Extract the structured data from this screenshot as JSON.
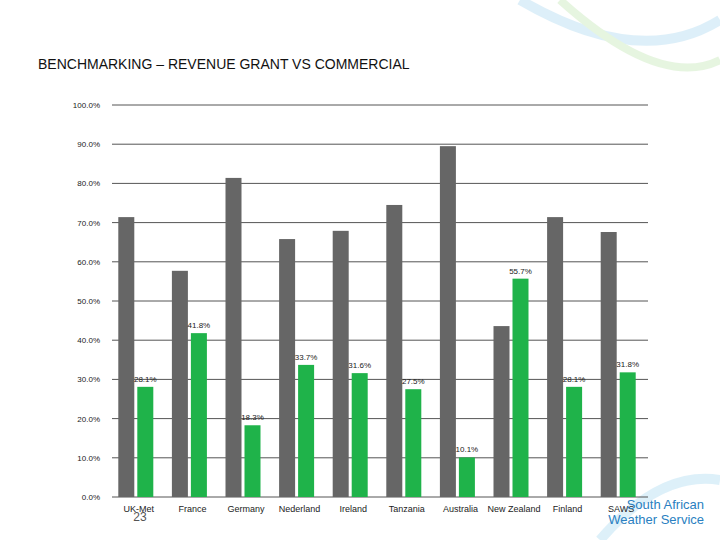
{
  "chart_data": {
    "type": "bar",
    "title": "BENCHMARKING – REVENUE GRANT VS COMMERCIAL",
    "categories": [
      "UK-Met",
      "France",
      "Germany",
      "Nederland",
      "Ireland",
      "Tanzania",
      "Australia",
      "New Zealand",
      "Finland",
      "SAWS"
    ],
    "series": [
      {
        "color": "#666666",
        "data_labels": false,
        "values": [
          71.4,
          57.7,
          81.4,
          65.8,
          67.9,
          74.5,
          89.5,
          43.6,
          71.4,
          67.6
        ]
      },
      {
        "color": "#1fb34a",
        "data_labels": true,
        "values": [
          28.1,
          41.8,
          18.3,
          33.7,
          31.6,
          27.5,
          10.1,
          55.7,
          28.1,
          31.8
        ],
        "value_labels": [
          "28.1%",
          "41.8%",
          "18.3%",
          "33.7%",
          "31.6%",
          "27.5%",
          "10.1%",
          "55.7%",
          "28.1%",
          "31.8%"
        ]
      }
    ],
    "ylim": [
      0,
      100
    ],
    "yticks": [
      {
        "value": 0,
        "label": "0.0%"
      },
      {
        "value": 10,
        "label": "10.0%"
      },
      {
        "value": 20,
        "label": "20.0%"
      },
      {
        "value": 30,
        "label": "30.0%"
      },
      {
        "value": 40,
        "label": "40.0%"
      },
      {
        "value": 50,
        "label": "50.0%"
      },
      {
        "value": 60,
        "label": "60.0%"
      },
      {
        "value": 70,
        "label": "70.0%"
      },
      {
        "value": 80,
        "label": "80.0%"
      },
      {
        "value": 90,
        "label": "90.0%"
      },
      {
        "value": 100,
        "label": "100.0%"
      }
    ],
    "grid": true
  },
  "footer": {
    "page_number": "23",
    "logo": [
      "South African",
      "Weather Service"
    ]
  }
}
